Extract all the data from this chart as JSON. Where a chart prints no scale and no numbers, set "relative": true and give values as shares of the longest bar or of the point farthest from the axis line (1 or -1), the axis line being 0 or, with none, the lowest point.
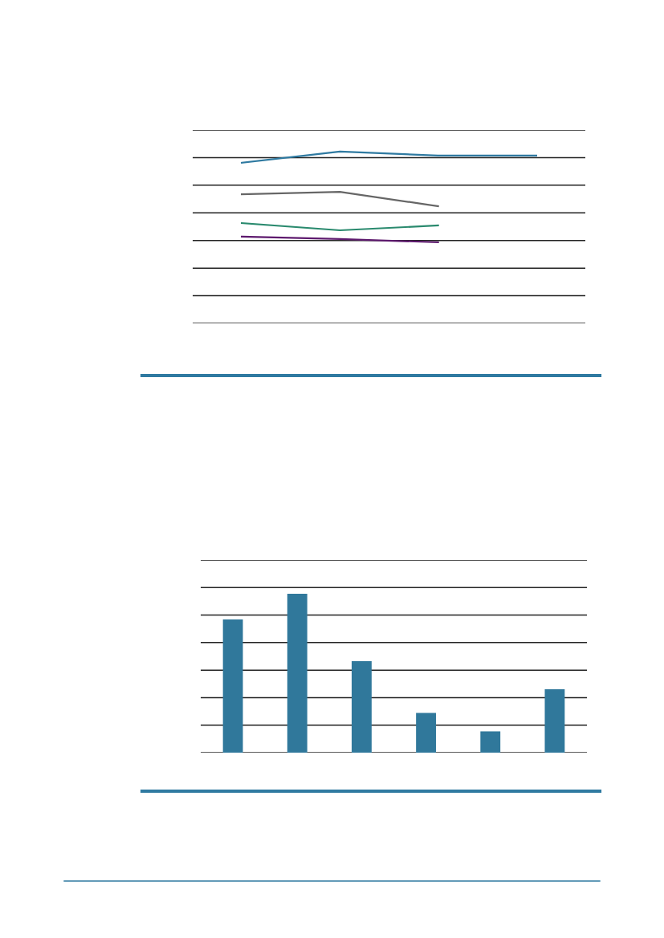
{
  "chart_data": [
    {
      "type": "line",
      "relative": true,
      "grid": "y",
      "categories": [
        null,
        null,
        null,
        null
      ],
      "series": [
        {
          "color": "#2f7aa1",
          "values": [
            0.935,
            1,
            0.977,
            0.977
          ]
        },
        {
          "color": "#666666",
          "values": [
            0.752,
            0.766,
            0.682,
            null
          ]
        },
        {
          "color": "#2a8a6e",
          "values": [
            0.584,
            0.542,
            0.57,
            null
          ]
        },
        {
          "color": "#5e1a6e",
          "values": [
            0.505,
            0.491,
            0.472,
            null
          ]
        }
      ]
    },
    {
      "type": "bar",
      "relative": true,
      "grid": "y",
      "categories": [
        null,
        null,
        null,
        null,
        null,
        null
      ],
      "color": "#30789b",
      "values": [
        0.838,
        1,
        0.576,
        0.25,
        0.134,
        0.399
      ]
    }
  ]
}
